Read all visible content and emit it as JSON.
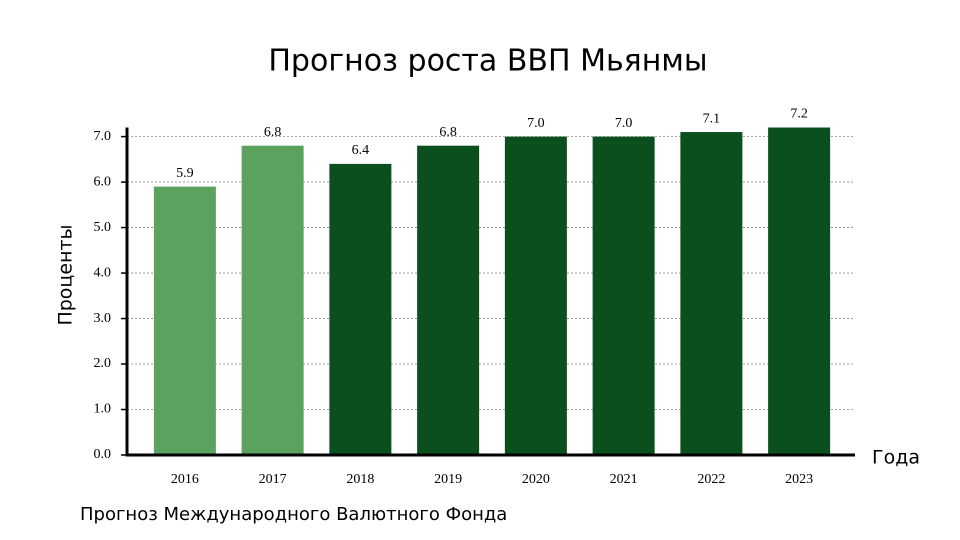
{
  "chart_data": {
    "type": "bar",
    "title": "Прогноз роста ВВП Мьянмы",
    "x_label": "Года",
    "y_label": "Проценты",
    "note": "Прогноз Международного Валютного Фонда",
    "categories": [
      "2016",
      "2017",
      "2018",
      "2019",
      "2020",
      "2021",
      "2022",
      "2023"
    ],
    "values": [
      5.9,
      6.8,
      6.4,
      6.8,
      7.0,
      7.0,
      7.1,
      7.2
    ],
    "value_labels": [
      "5.9",
      "6.8",
      "6.4",
      "6.8",
      "7.0",
      "7.0",
      "7.1",
      "7.2"
    ],
    "colors": [
      "#5aa25e",
      "#5aa25e",
      "#0b4f1f",
      "#0b4f1f",
      "#0b4f1f",
      "#0b4f1f",
      "#0b4f1f",
      "#0b4f1f"
    ],
    "ylim": [
      0,
      7.2
    ],
    "yticks": [
      {
        "value": 0,
        "label": "0.0"
      },
      {
        "value": 1,
        "label": "1.0"
      },
      {
        "value": 2,
        "label": "2.0"
      },
      {
        "value": 3,
        "label": "3.0"
      },
      {
        "value": 4,
        "label": "4.0"
      },
      {
        "value": 5,
        "label": "5.0"
      },
      {
        "value": 6,
        "label": "6.0"
      },
      {
        "value": 7,
        "label": "7.0"
      }
    ],
    "grid": true
  }
}
